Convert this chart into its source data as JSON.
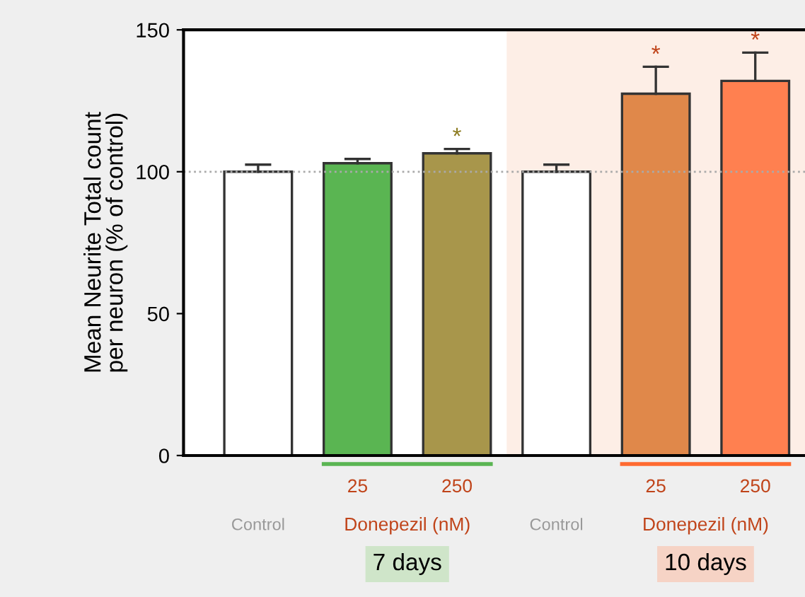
{
  "chart_data": {
    "type": "bar",
    "ylabel": "Mean Neurite Total count\nper neuron (% of control)",
    "categories": [
      "Control",
      "25",
      "250",
      "Control",
      "25",
      "250"
    ],
    "values": [
      100,
      103,
      106.5,
      100,
      127.5,
      132
    ],
    "colors": [
      "#ffffff",
      "#5ab552",
      "#a8964b",
      "#ffffff",
      "#e0884a",
      "#ff8050"
    ],
    "errors": [
      [
        100,
        102.5
      ],
      [
        103,
        104.5
      ],
      [
        106.5,
        108
      ],
      [
        100,
        102.5
      ],
      [
        127.5,
        137
      ],
      [
        132,
        142
      ]
    ],
    "value_labels": [
      null,
      null,
      "*",
      null,
      "*",
      "*"
    ],
    "ylim": [
      0,
      150
    ],
    "yticks": [
      0,
      50,
      100,
      150
    ],
    "ref_lines": [
      {
        "axis": "y",
        "value": 100,
        "label": null,
        "color": "#aaaaaa",
        "line_style": "dotted"
      }
    ],
    "annotations": [
      "Donepezil (nM)",
      "Donepezil (nM)",
      "7 days",
      "10 days"
    ],
    "grid": false
  }
}
